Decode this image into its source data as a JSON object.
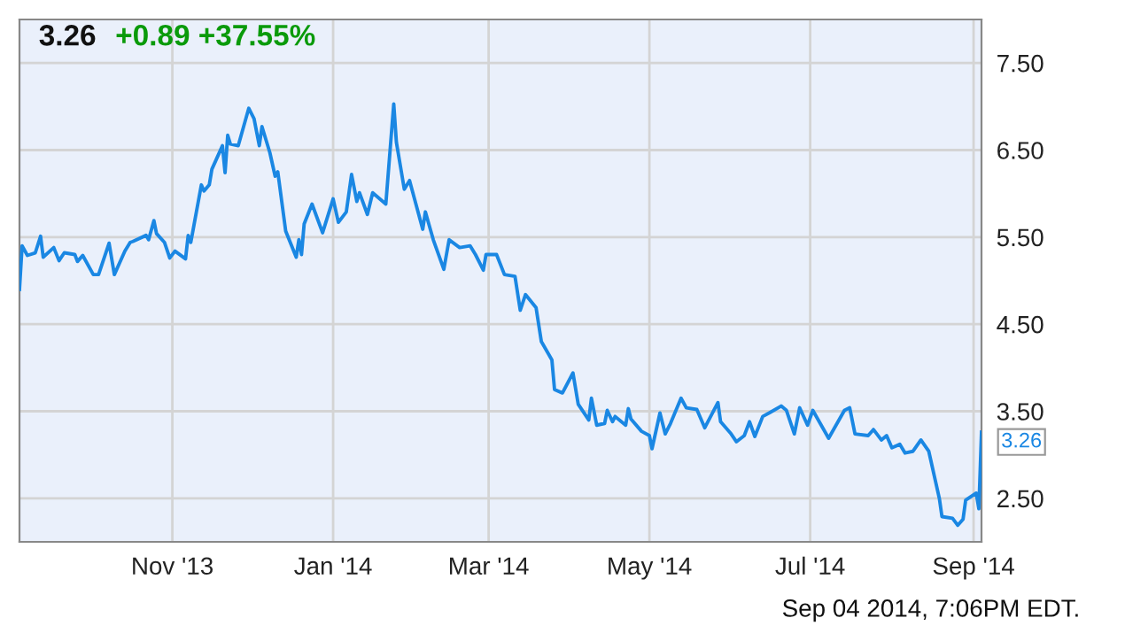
{
  "chart_data": {
    "type": "line",
    "title": "3.26",
    "subtitle": "+0.89 +37.55%",
    "annotations": [
      {
        "text": "3.26",
        "x": "2014-09-04",
        "y": 3.26
      },
      "Sep 04 2014, 7:06PM EDT."
    ],
    "x": [
      "2013-09-04",
      "2013-09-05",
      "2013-09-07",
      "2013-09-10",
      "2013-09-12",
      "2013-09-13",
      "2013-09-17",
      "2013-09-19",
      "2013-09-21",
      "2013-09-25",
      "2013-09-26",
      "2013-09-28",
      "2013-10-02",
      "2013-10-04",
      "2013-10-08",
      "2013-10-10",
      "2013-10-14",
      "2013-10-16",
      "2013-10-17",
      "2013-10-22",
      "2013-10-23",
      "2013-10-25",
      "2013-10-26",
      "2013-10-29",
      "2013-10-31",
      "2013-11-02",
      "2013-11-06",
      "2013-11-07",
      "2013-11-08",
      "2013-11-12",
      "2013-11-13",
      "2013-11-15",
      "2013-11-16",
      "2013-11-20",
      "2013-11-21",
      "2013-11-22",
      "2013-11-23",
      "2013-11-26",
      "2013-11-30",
      "2013-12-02",
      "2013-12-04",
      "2013-12-05",
      "2013-12-08",
      "2013-12-10",
      "2013-12-11",
      "2013-12-14",
      "2013-12-18",
      "2013-12-19",
      "2013-12-20",
      "2013-12-21",
      "2013-12-24",
      "2013-12-28",
      "2014-01-01",
      "2014-01-03",
      "2014-01-06",
      "2014-01-08",
      "2014-01-10",
      "2014-01-11",
      "2014-01-14",
      "2014-01-16",
      "2014-01-21",
      "2014-01-24",
      "2014-01-25",
      "2014-01-28",
      "2014-01-30",
      "2014-02-04",
      "2014-02-05",
      "2014-02-08",
      "2014-02-12",
      "2014-02-14",
      "2014-02-18",
      "2014-02-22",
      "2014-02-24",
      "2014-02-27",
      "2014-02-28",
      "2014-03-04",
      "2014-03-07",
      "2014-03-11",
      "2014-03-13",
      "2014-03-15",
      "2014-03-19",
      "2014-03-21",
      "2014-03-25",
      "2014-03-26",
      "2014-03-29",
      "2014-04-02",
      "2014-04-04",
      "2014-04-08",
      "2014-04-09",
      "2014-04-11",
      "2014-04-14",
      "2014-04-15",
      "2014-04-17",
      "2014-04-18",
      "2014-04-22",
      "2014-04-23",
      "2014-04-24",
      "2014-04-28",
      "2014-05-01",
      "2014-05-02",
      "2014-05-05",
      "2014-05-07",
      "2014-05-09",
      "2014-05-13",
      "2014-05-15",
      "2014-05-19",
      "2014-05-22",
      "2014-05-27",
      "2014-05-28",
      "2014-06-01",
      "2014-06-03",
      "2014-06-06",
      "2014-06-08",
      "2014-06-10",
      "2014-06-13",
      "2014-06-16",
      "2014-06-20",
      "2014-06-22",
      "2014-06-25",
      "2014-06-27",
      "2014-06-30",
      "2014-07-02",
      "2014-07-08",
      "2014-07-14",
      "2014-07-16",
      "2014-07-18",
      "2014-07-23",
      "2014-07-25",
      "2014-07-28",
      "2014-07-30",
      "2014-08-01",
      "2014-08-04",
      "2014-08-06",
      "2014-08-09",
      "2014-08-12",
      "2014-08-15",
      "2014-08-19",
      "2014-08-20",
      "2014-08-24",
      "2014-08-26",
      "2014-08-28",
      "2014-08-29",
      "2014-09-02",
      "2014-09-03",
      "2014-09-04"
    ],
    "series": [
      {
        "color": "#1a87e3",
        "values": [
          4.9,
          5.4,
          5.29,
          5.32,
          5.51,
          5.27,
          5.38,
          5.23,
          5.32,
          5.3,
          5.22,
          5.29,
          5.07,
          5.07,
          5.43,
          5.07,
          5.34,
          5.44,
          5.45,
          5.52,
          5.47,
          5.69,
          5.54,
          5.44,
          5.26,
          5.34,
          5.25,
          5.52,
          5.44,
          6.1,
          6.03,
          6.1,
          6.28,
          6.55,
          6.24,
          6.67,
          6.57,
          6.55,
          6.98,
          6.86,
          6.55,
          6.77,
          6.47,
          6.2,
          6.25,
          5.57,
          5.27,
          5.47,
          5.3,
          5.65,
          5.88,
          5.55,
          5.94,
          5.67,
          5.79,
          6.22,
          5.91,
          6.01,
          5.76,
          6.01,
          5.88,
          7.03,
          6.59,
          6.05,
          6.15,
          5.59,
          5.79,
          5.47,
          5.13,
          5.47,
          5.38,
          5.4,
          5.3,
          5.12,
          5.3,
          5.3,
          5.07,
          5.05,
          4.66,
          4.84,
          4.69,
          4.3,
          4.09,
          3.75,
          3.71,
          3.94,
          3.58,
          3.4,
          3.65,
          3.34,
          3.36,
          3.51,
          3.38,
          3.44,
          3.34,
          3.53,
          3.41,
          3.27,
          3.22,
          3.07,
          3.48,
          3.24,
          3.36,
          3.65,
          3.54,
          3.52,
          3.31,
          3.6,
          3.38,
          3.24,
          3.15,
          3.22,
          3.38,
          3.21,
          3.44,
          3.49,
          3.56,
          3.51,
          3.24,
          3.54,
          3.34,
          3.51,
          3.19,
          3.51,
          3.54,
          3.24,
          3.22,
          3.29,
          3.17,
          3.22,
          3.08,
          3.12,
          3.02,
          3.04,
          3.17,
          3.04,
          2.5,
          2.29,
          2.27,
          2.19,
          2.26,
          2.48,
          2.56,
          2.38,
          3.26
        ]
      }
    ],
    "xlim": [
      "2013-09-04",
      "2014-09-04"
    ],
    "xticks": [
      {
        "value": "2013-11-01",
        "label": "Nov '13"
      },
      {
        "value": "2014-01-01",
        "label": "Jan '14"
      },
      {
        "value": "2014-03-01",
        "label": "Mar '14"
      },
      {
        "value": "2014-05-01",
        "label": "May '14"
      },
      {
        "value": "2014-07-01",
        "label": "Jul '14"
      },
      {
        "value": "2014-09-01",
        "label": "Sep '14"
      }
    ],
    "ylim": [
      2.0,
      8.0
    ],
    "yticks": [
      {
        "value": 2.5,
        "label": "2.50"
      },
      {
        "value": 3.5,
        "label": "3.50"
      },
      {
        "value": 4.5,
        "label": "4.50"
      },
      {
        "value": 5.5,
        "label": "5.50"
      },
      {
        "value": 6.5,
        "label": "6.50"
      },
      {
        "value": 7.5,
        "label": "7.50"
      }
    ],
    "grid": true,
    "legend": false,
    "marker": "none",
    "line_style": "solid"
  }
}
